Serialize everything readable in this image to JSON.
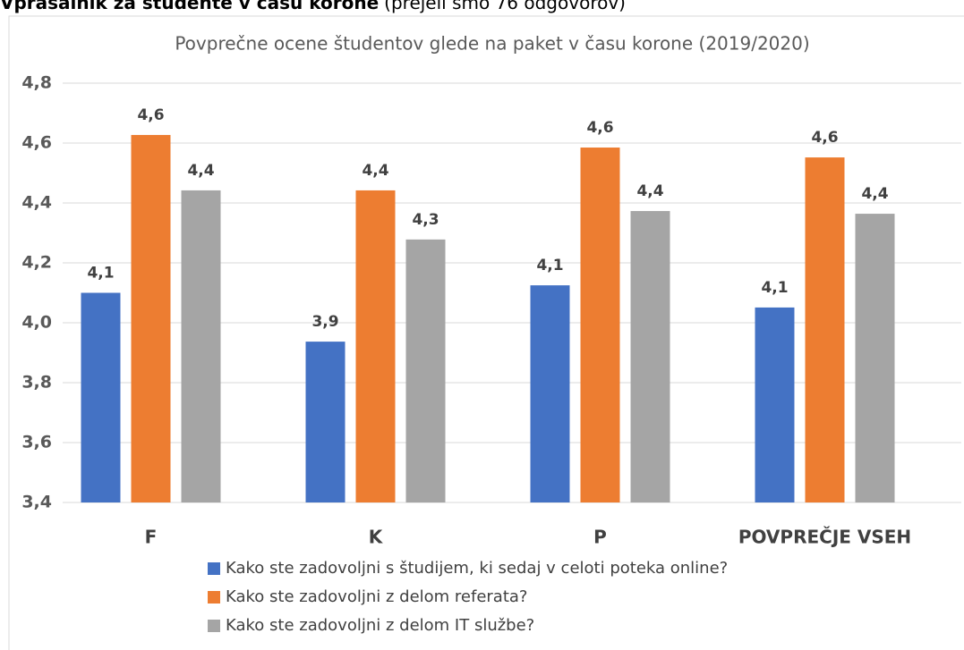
{
  "heading": {
    "bold": "Vprašalnik za študente v času korone",
    "rest": "(prejeli smo 76 odgovorov)"
  },
  "chart_data": {
    "type": "bar",
    "title": "Povprečne ocene študentov glede na paket v času korone (2019/2020)",
    "categories": [
      "F",
      "K",
      "P",
      "POVPREČJE VSEH"
    ],
    "series": [
      {
        "name": "Kako ste zadovoljni s študijem, ki sedaj v celoti poteka online?",
        "color": "#4472c4",
        "values": [
          4.1,
          3.937,
          4.125,
          4.051
        ],
        "value_labels": [
          "4,1",
          "3,9",
          "4,1",
          "4,1"
        ]
      },
      {
        "name": "Kako ste zadovoljni z delom referata?",
        "color": "#ed7d31",
        "values": [
          4.627,
          4.442,
          4.585,
          4.552
        ],
        "value_labels": [
          "4,6",
          "4,4",
          "4,6",
          "4,6"
        ]
      },
      {
        "name": "Kako ste zadovoljni z delom IT službe?",
        "color": "#a5a5a5",
        "values": [
          4.442,
          4.278,
          4.373,
          4.364
        ],
        "value_labels": [
          "4,4",
          "4,3",
          "4,4",
          "4,4"
        ]
      }
    ],
    "ylim": [
      3.4,
      4.8
    ],
    "yticks": [
      {
        "value": 3.4,
        "label": "3,4"
      },
      {
        "value": 3.6,
        "label": "3,6"
      },
      {
        "value": 3.8,
        "label": "3,8"
      },
      {
        "value": 4.0,
        "label": "4,0"
      },
      {
        "value": 4.2,
        "label": "4,2"
      },
      {
        "value": 4.4,
        "label": "4,4"
      },
      {
        "value": 4.6,
        "label": "4,6"
      },
      {
        "value": 4.8,
        "label": "4,8"
      }
    ],
    "grid": true,
    "legend": "bottom"
  }
}
